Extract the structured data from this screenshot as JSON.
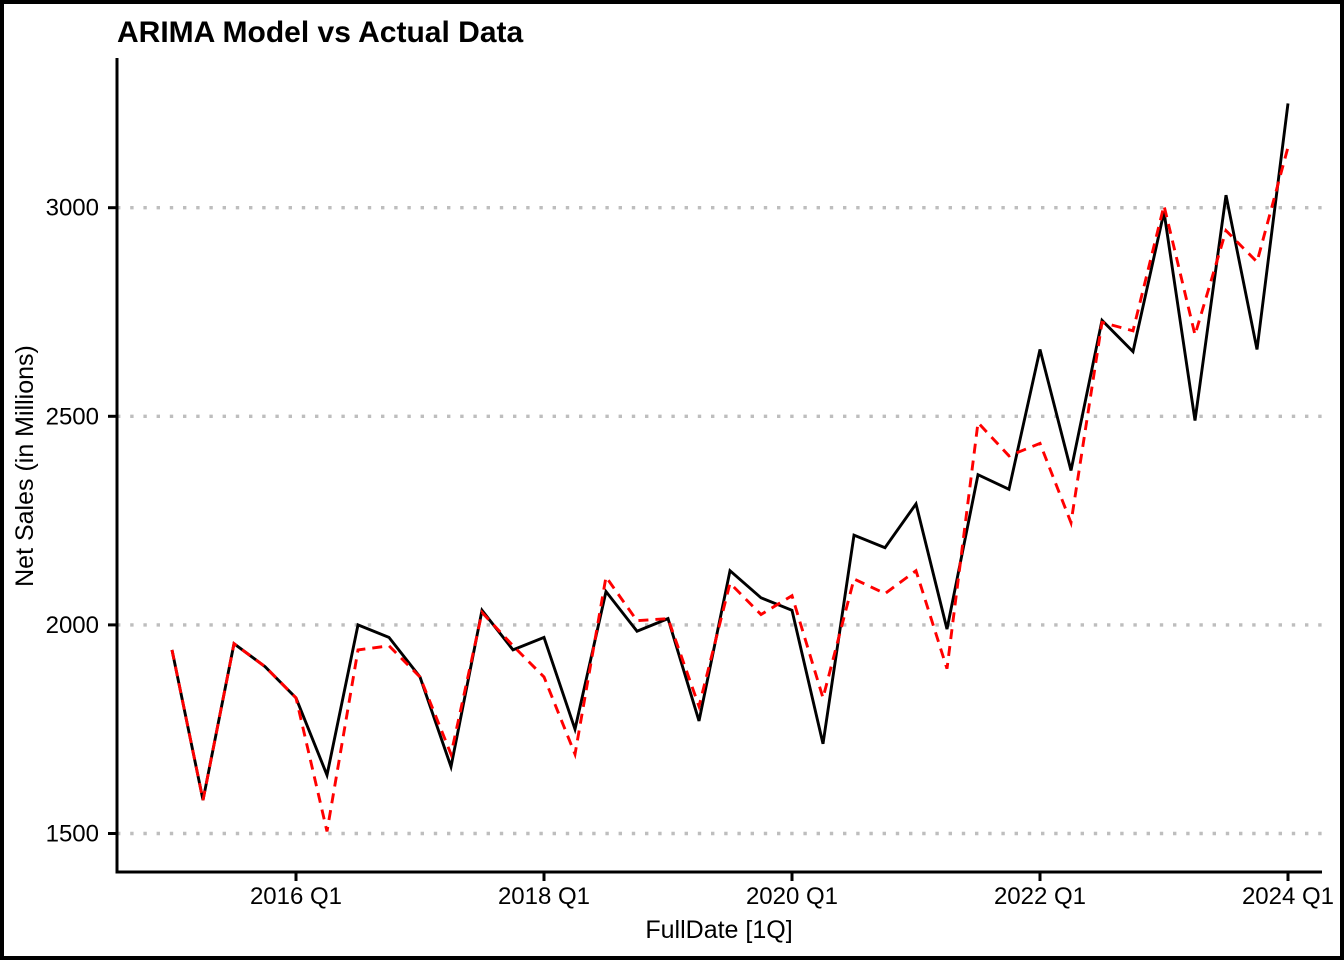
{
  "chart_data": {
    "type": "line",
    "title": "ARIMA Model vs Actual Data",
    "xlabel": "FullDate [1Q]",
    "ylabel": "Net Sales (in Millions)",
    "grid": "horizontal-dotted",
    "legend_position": "none",
    "ylim": [
      1410,
      3350
    ],
    "y_ticks": [
      1500,
      2000,
      2500,
      3000
    ],
    "y_tick_labels": [
      "1500",
      "2000",
      "2500",
      "3000"
    ],
    "x_tick_labels": [
      "2016 Q1",
      "2018 Q1",
      "2020 Q1",
      "2022 Q1",
      "2024 Q1"
    ],
    "x_tick_indices": [
      4,
      12,
      20,
      28,
      36
    ],
    "categories": [
      "2015 Q1",
      "2015 Q2",
      "2015 Q3",
      "2015 Q4",
      "2016 Q1",
      "2016 Q2",
      "2016 Q3",
      "2016 Q4",
      "2017 Q1",
      "2017 Q2",
      "2017 Q3",
      "2017 Q4",
      "2018 Q1",
      "2018 Q2",
      "2018 Q3",
      "2018 Q4",
      "2019 Q1",
      "2019 Q2",
      "2019 Q3",
      "2019 Q4",
      "2020 Q1",
      "2020 Q2",
      "2020 Q3",
      "2020 Q4",
      "2021 Q1",
      "2021 Q2",
      "2021 Q3",
      "2021 Q4",
      "2022 Q1",
      "2022 Q2",
      "2022 Q3",
      "2022 Q4",
      "2023 Q1",
      "2023 Q2",
      "2023 Q3",
      "2023 Q4",
      "2024 Q1"
    ],
    "series": [
      {
        "name": "Actual Data",
        "color": "#000000",
        "style": "solid",
        "values": [
          1940,
          1580,
          1955,
          1900,
          1825,
          1640,
          2000,
          1970,
          1875,
          1660,
          2035,
          1940,
          1970,
          1750,
          2080,
          1985,
          2015,
          1770,
          2130,
          2065,
          2035,
          1715,
          2215,
          2185,
          2290,
          1990,
          2360,
          2325,
          2660,
          2370,
          2730,
          2655,
          2990,
          2490,
          3030,
          2660,
          3250
        ]
      },
      {
        "name": "ARIMA Model",
        "color": "#FF0000",
        "style": "dashed",
        "values": [
          1940,
          1580,
          1955,
          1900,
          1825,
          1505,
          1940,
          1950,
          1875,
          1690,
          2030,
          1950,
          1875,
          1690,
          2115,
          2010,
          2015,
          1805,
          2100,
          2025,
          2070,
          1825,
          2110,
          2075,
          2130,
          1895,
          2485,
          2405,
          2435,
          2245,
          2725,
          2705,
          3005,
          2695,
          2945,
          2870,
          3145
        ]
      }
    ],
    "colors": {
      "gridline": "#BEBEBE",
      "axis": "#000000",
      "background": "#FFFFFF",
      "border": "#000000"
    }
  }
}
